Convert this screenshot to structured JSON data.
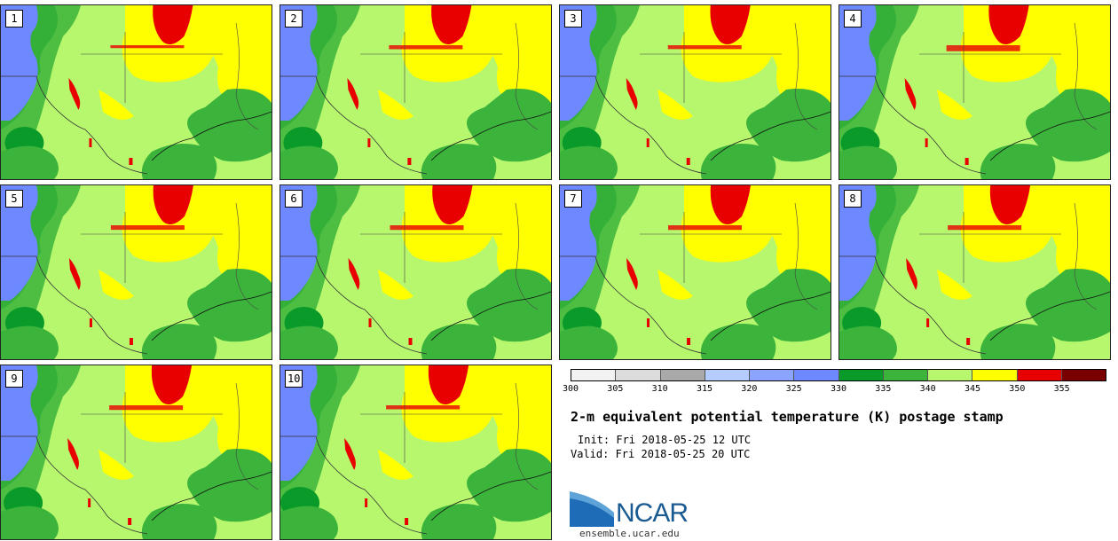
{
  "panels": [
    {
      "label": "1"
    },
    {
      "label": "2"
    },
    {
      "label": "3"
    },
    {
      "label": "4"
    },
    {
      "label": "5"
    },
    {
      "label": "6"
    },
    {
      "label": "7"
    },
    {
      "label": "8"
    },
    {
      "label": "9"
    },
    {
      "label": "10"
    }
  ],
  "legend": {
    "ticks": [
      "300",
      "305",
      "310",
      "315",
      "320",
      "325",
      "330",
      "335",
      "340",
      "345",
      "350",
      "355"
    ],
    "colors": [
      "#f2f2f2",
      "#dcdcdc",
      "#a9a9a9",
      "#b4ccff",
      "#8aa4ff",
      "#6e88ff",
      "#0a9a2a",
      "#3cb43c",
      "#b7f76e",
      "#ffff00",
      "#e80000",
      "#7a0000"
    ]
  },
  "title": "2-m equivalent potential temperature (K) postage stamp",
  "init": "Init: Fri 2018-05-25 12 UTC",
  "valid": "Valid: Fri 2018-05-25 20 UTC",
  "logo": {
    "text": "NCAR",
    "url": "ensemble.ucar.edu"
  },
  "map_colors": {
    "bg": "#b7f76e",
    "blue": "#6e88ff",
    "dark_green": "#0a9a2a",
    "green": "#3cb43c",
    "yellow": "#ffff00",
    "red": "#e80000"
  }
}
